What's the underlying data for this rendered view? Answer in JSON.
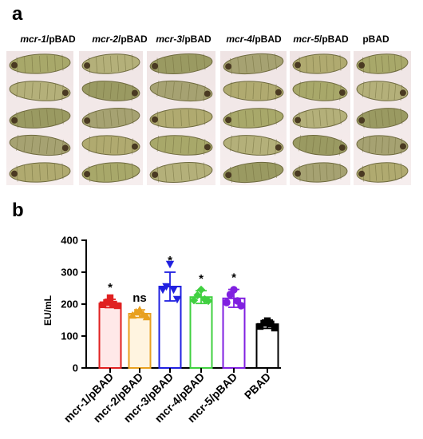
{
  "panels": {
    "a": "a",
    "b": "b"
  },
  "strains": [
    {
      "gene": "mcr-1",
      "suffix": "/pBAD"
    },
    {
      "gene": "mcr-2",
      "suffix": "/pBAD"
    },
    {
      "gene": "mcr-3",
      "suffix": "/pBAD"
    },
    {
      "gene": "mcr-4",
      "suffix": "/pBAD"
    },
    {
      "gene": "mcr-5",
      "suffix": "/pBAD"
    },
    {
      "gene": "",
      "suffix": "pBAD"
    }
  ],
  "larva_counts": [
    5,
    5,
    5,
    5,
    5,
    5
  ],
  "chart_data": {
    "type": "bar",
    "title": "",
    "xlabel": "",
    "ylabel": "EU/mL",
    "ylim": [
      0,
      400
    ],
    "yticks": [
      0,
      100,
      200,
      300,
      400
    ],
    "categories": [
      "mcr-1/pBAD",
      "mcr-2/pBAD",
      "mcr-3/pBAD",
      "mcr-4/pBAD",
      "mcr-5/pBAD",
      "PBAD"
    ],
    "values": [
      202,
      170,
      255,
      222,
      218,
      137
    ],
    "errors": [
      13,
      12,
      45,
      20,
      28,
      13
    ],
    "significance": [
      "*",
      "ns",
      "*",
      "*",
      "*",
      ""
    ],
    "points": [
      [
        198,
        205,
        220,
        200,
        195
      ],
      [
        165,
        175,
        182,
        168,
        160
      ],
      [
        245,
        255,
        325,
        245,
        215
      ],
      [
        212,
        228,
        245,
        215,
        210
      ],
      [
        205,
        230,
        245,
        210,
        195
      ],
      [
        130,
        140,
        148,
        138,
        125
      ]
    ],
    "markers": [
      "square",
      "triangle-up",
      "triangle-down",
      "diamond",
      "circle",
      "square"
    ],
    "colors": [
      "#e02020",
      "#e8a020",
      "#2020e0",
      "#40d040",
      "#8020e0",
      "#000000"
    ],
    "fill_colors": [
      "#ffe8e8",
      "#fff4e0",
      "#ffffff",
      "#ffffff",
      "#ffffff",
      "#ffffff"
    ]
  }
}
